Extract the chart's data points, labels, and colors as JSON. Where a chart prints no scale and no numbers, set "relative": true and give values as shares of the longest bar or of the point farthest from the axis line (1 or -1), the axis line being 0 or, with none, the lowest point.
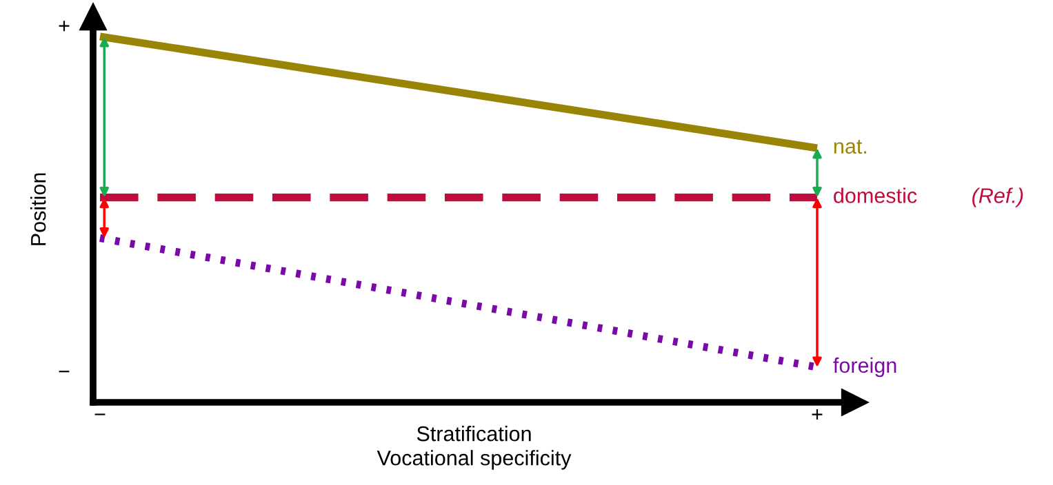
{
  "chart_data": {
    "type": "line",
    "relative": true,
    "xlabel": "Stratification\nVocational specificity",
    "ylabel": "Position",
    "categories": [
      "−",
      "+"
    ],
    "series": [
      {
        "name": "nat.",
        "color": "#9a8406",
        "line_style": "solid",
        "values": [
          1,
          0.695
        ]
      },
      {
        "name": "domestic",
        "color": "#c00c3c",
        "line_style": "dashed",
        "values": [
          0.56,
          0.56
        ]
      },
      {
        "name": "foreign",
        "color": "#7a0aa8",
        "line_style": "dotted",
        "values": [
          0.449,
          0.096
        ]
      }
    ],
    "annotations": [
      "+",
      "−",
      "(Ref.)"
    ],
    "legend": false,
    "marker": "none"
  }
}
